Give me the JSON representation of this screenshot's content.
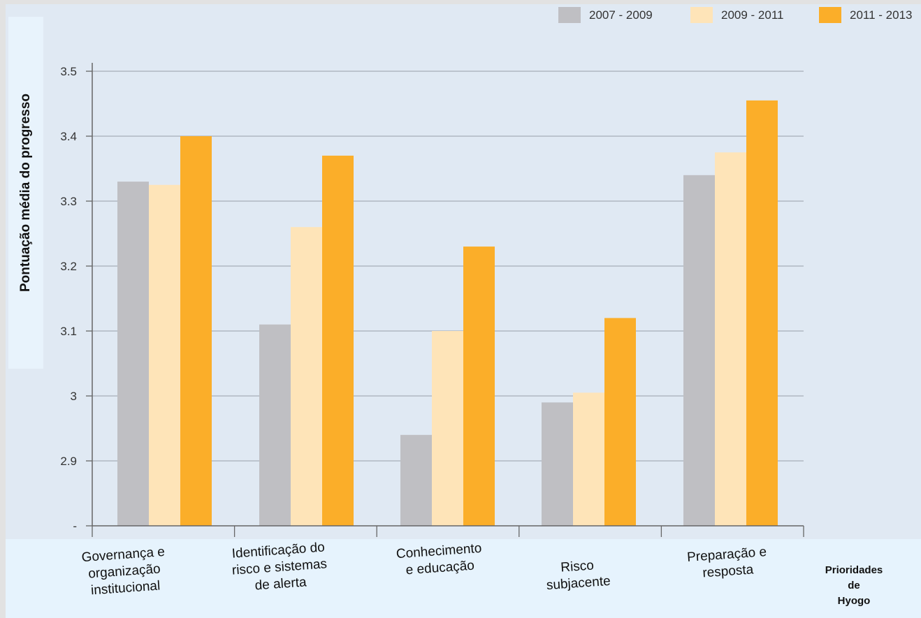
{
  "chart_data": {
    "type": "bar",
    "categories": [
      [
        "Governança e",
        "organização",
        "institucional"
      ],
      [
        "Identificação do",
        "risco e sistemas",
        "de alerta"
      ],
      [
        "Conhecimento",
        "e educação"
      ],
      [
        "Risco",
        "subjacente"
      ],
      [
        "Preparação e",
        "resposta"
      ]
    ],
    "series": [
      {
        "name": "2007 - 2009",
        "color": "#bfbfc3",
        "values": [
          3.33,
          3.11,
          2.94,
          2.99,
          3.34
        ]
      },
      {
        "name": "2009 - 2011",
        "color": "#fee4b8",
        "values": [
          3.325,
          3.26,
          3.1,
          3.005,
          3.375
        ]
      },
      {
        "name": "2011 - 2013",
        "color": "#fbae29",
        "values": [
          3.4,
          3.37,
          3.23,
          3.12,
          3.455
        ]
      }
    ],
    "ylabel": "Pontuação média do progresso",
    "xlabel": [
      "Prioridades de",
      "Hyogo"
    ],
    "yticks": [
      "-",
      "2.9",
      "3",
      "3.1",
      "3.2",
      "3.3",
      "3.4",
      "3.5"
    ],
    "ylim": [
      2.8,
      3.5
    ],
    "grid": true,
    "legend_position": "top-right"
  }
}
